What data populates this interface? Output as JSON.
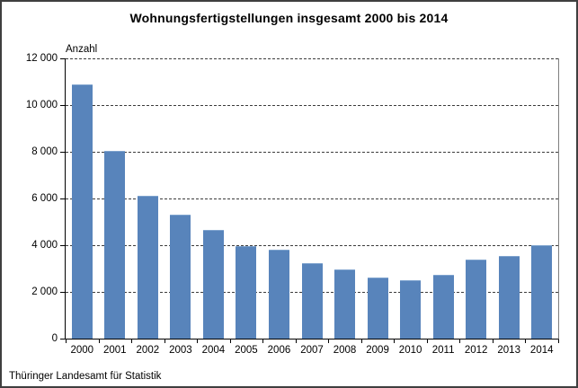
{
  "title": "Wohnungsfertigstellungen insgesamt 2000 bis 2014",
  "source": "Thüringer Landesamt für Statistik",
  "colors": {
    "bar": "#5884bb",
    "bar_edge": "#7ea3ce",
    "grid": "#3c3c3c",
    "axis": "#000000",
    "frame": "#3f3f3f"
  },
  "chart_data": {
    "type": "bar",
    "title": "Wohnungsfertigstellungen insgesamt 2000 bis 2014",
    "ylabel": "Anzahl",
    "xlabel": "",
    "categories": [
      "2000",
      "2001",
      "2002",
      "2003",
      "2004",
      "2005",
      "2006",
      "2007",
      "2008",
      "2009",
      "2010",
      "2011",
      "2012",
      "2013",
      "2014"
    ],
    "values": [
      10900,
      8050,
      6100,
      5300,
      4650,
      3950,
      3800,
      3250,
      2950,
      2600,
      2500,
      2750,
      3400,
      3550,
      4000
    ],
    "ylim": [
      0,
      12000
    ],
    "yticks": [
      0,
      2000,
      4000,
      6000,
      8000,
      10000,
      12000
    ],
    "ytick_labels": [
      "0",
      "2 000",
      "4 000",
      "6 000",
      "8 000",
      "10 000",
      "12 000"
    ],
    "grid": "horizontal-dashed",
    "legend": "none",
    "source_note": "Thüringer Landesamt für Statistik"
  }
}
